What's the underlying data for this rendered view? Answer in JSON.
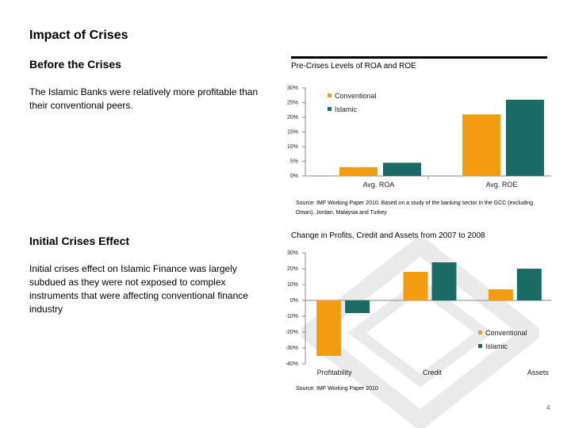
{
  "slide": {
    "title": "Impact of Crises",
    "page_number": "4"
  },
  "section1": {
    "heading": "Before the Crises",
    "body": "The Islamic Banks were relatively more profitable than their conventional peers."
  },
  "section2": {
    "heading": "Initial Crises Effect",
    "body": "Initial crises effect on Islamic Finance was largely subdued as they were not exposed to complex instruments that were affecting conventional finance industry"
  },
  "colors": {
    "conventional": "#f39c12",
    "islamic": "#1a6b66",
    "watermark": "#eaeaea"
  },
  "chart_data": [
    {
      "type": "bar",
      "title": "Pre-Crises Levels of ROA and ROE",
      "categories": [
        "Avg. ROA",
        "Avg. ROE"
      ],
      "series": [
        {
          "name": "Conventional",
          "values": [
            3,
            21
          ]
        },
        {
          "name": "Islamic",
          "values": [
            4.5,
            26
          ]
        }
      ],
      "ylim": [
        0,
        30
      ],
      "yticks": [
        "0%",
        "5%",
        "10%",
        "15%",
        "20%",
        "25%",
        "30%"
      ],
      "legend": "top-right",
      "source": "Source: IMF Working Paper 2010. Based on a study of the banking sector in the GCC (excluding Oman), Jordan, Malaysia and Turkey"
    },
    {
      "type": "bar",
      "title": "Change in Profits, Credit and Assets from 2007 to 2008",
      "categories": [
        "Profitability",
        "Credit",
        "Assets"
      ],
      "series": [
        {
          "name": "Conventional",
          "values": [
            -35,
            18,
            7
          ]
        },
        {
          "name": "Islamic",
          "values": [
            -8,
            24,
            20
          ]
        }
      ],
      "ylim": [
        -40,
        30
      ],
      "yticks": [
        "-40%",
        "-30%",
        "-20%",
        "-10%",
        "0%",
        "10%",
        "20%",
        "30%"
      ],
      "legend": "bottom-right",
      "source": "Source: IMF Working Paper 2010"
    }
  ]
}
